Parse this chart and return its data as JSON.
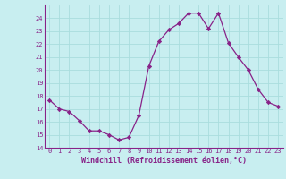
{
  "x": [
    0,
    1,
    2,
    3,
    4,
    5,
    6,
    7,
    8,
    9,
    10,
    11,
    12,
    13,
    14,
    15,
    16,
    17,
    18,
    19,
    20,
    21,
    22,
    23
  ],
  "y": [
    17.7,
    17.0,
    16.8,
    16.1,
    15.3,
    15.3,
    15.0,
    14.6,
    14.8,
    16.5,
    20.3,
    22.2,
    23.1,
    23.6,
    24.4,
    24.4,
    23.2,
    24.4,
    22.1,
    21.0,
    20.0,
    18.5,
    17.5,
    17.2
  ],
  "line_color": "#882288",
  "marker": "D",
  "marker_size": 2.2,
  "bg_color": "#c8eef0",
  "grid_color": "#aadddd",
  "xlabel": "Windchill (Refroidissement éolien,°C)",
  "xlabel_color": "#882288",
  "tick_color": "#882288",
  "ylim": [
    14,
    25
  ],
  "xlim_min": -0.5,
  "xlim_max": 23.5,
  "yticks": [
    14,
    15,
    16,
    17,
    18,
    19,
    20,
    21,
    22,
    23,
    24
  ],
  "xticks": [
    0,
    1,
    2,
    3,
    4,
    5,
    6,
    7,
    8,
    9,
    10,
    11,
    12,
    13,
    14,
    15,
    16,
    17,
    18,
    19,
    20,
    21,
    22,
    23
  ],
  "tick_fontsize": 5.0,
  "xlabel_fontsize": 6.0
}
